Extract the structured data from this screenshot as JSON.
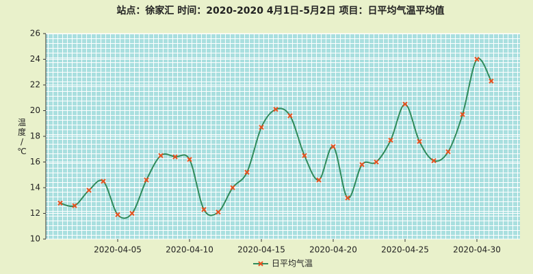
{
  "chart_data": {
    "type": "line",
    "title": "站点：徐家汇  时间：2020-2020    4月1日-5月2日  项目：日平均气温平均值",
    "y_label": "温度/℃",
    "x": [
      "2020-04-01",
      "2020-04-02",
      "2020-04-03",
      "2020-04-04",
      "2020-04-05",
      "2020-04-06",
      "2020-04-07",
      "2020-04-08",
      "2020-04-09",
      "2020-04-10",
      "2020-04-11",
      "2020-04-12",
      "2020-04-13",
      "2020-04-14",
      "2020-04-15",
      "2020-04-16",
      "2020-04-17",
      "2020-04-18",
      "2020-04-19",
      "2020-04-20",
      "2020-04-21",
      "2020-04-22",
      "2020-04-23",
      "2020-04-24",
      "2020-04-25",
      "2020-04-26",
      "2020-04-27",
      "2020-04-28",
      "2020-04-29",
      "2020-04-30",
      "2020-05-01"
    ],
    "series": [
      {
        "name": "日平均气温",
        "color": "#2f8a5a",
        "marker_color": "#e8501e",
        "values": [
          12.8,
          12.6,
          13.8,
          14.5,
          11.9,
          12.0,
          14.6,
          16.5,
          16.4,
          16.2,
          12.3,
          12.1,
          14.0,
          15.2,
          18.7,
          20.1,
          19.6,
          16.5,
          14.6,
          17.2,
          13.2,
          15.8,
          16.0,
          17.7,
          20.5,
          17.6,
          16.1,
          16.8,
          19.7,
          24.0,
          22.3
        ]
      }
    ],
    "xlim": [
      "2020-03-31",
      "2020-05-03"
    ],
    "xticks": [
      "2020-04-05",
      "2020-04-10",
      "2020-04-15",
      "2020-04-20",
      "2020-04-25",
      "2020-04-30"
    ],
    "ylim": [
      10,
      26
    ],
    "yticks": [
      10,
      12,
      14,
      16,
      18,
      20,
      22,
      24,
      26
    ],
    "grid": true
  }
}
